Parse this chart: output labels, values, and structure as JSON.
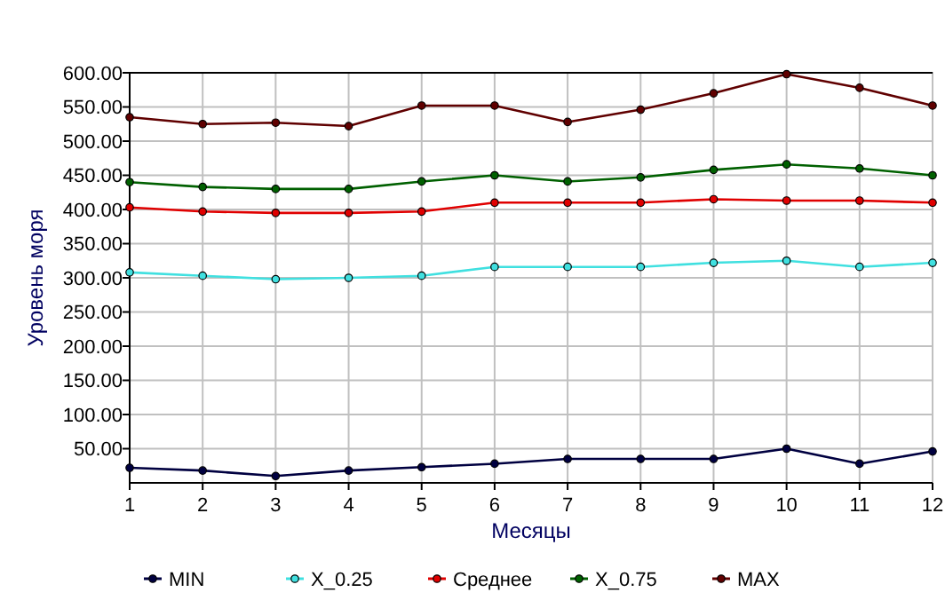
{
  "chart_data": {
    "type": "line",
    "xlabel": "Месяцы",
    "ylabel": "Уровень моря",
    "x": [
      1,
      2,
      3,
      4,
      5,
      6,
      7,
      8,
      9,
      10,
      11,
      12
    ],
    "xlim": [
      1,
      12
    ],
    "xticks": [
      1,
      2,
      3,
      4,
      5,
      6,
      7,
      8,
      9,
      10,
      11,
      12
    ],
    "ylim": [
      0,
      600
    ],
    "yticks": [
      {
        "value": 50,
        "label": "50.00"
      },
      {
        "value": 100,
        "label": "100.00"
      },
      {
        "value": 150,
        "label": "150.00"
      },
      {
        "value": 200,
        "label": "200.00"
      },
      {
        "value": 250,
        "label": "250.00"
      },
      {
        "value": 300,
        "label": "300.00"
      },
      {
        "value": 350,
        "label": "350.00"
      },
      {
        "value": 400,
        "label": "400.00"
      },
      {
        "value": 450,
        "label": "450.00"
      },
      {
        "value": 500,
        "label": "500.00"
      },
      {
        "value": 550,
        "label": "550.00"
      },
      {
        "value": 600,
        "label": "600.00"
      }
    ],
    "grid": true,
    "legend": "bottom",
    "marker": "circle",
    "series": [
      {
        "name": "MIN",
        "color": "#000040",
        "values": [
          22,
          18,
          10,
          18,
          23,
          28,
          35,
          35,
          35,
          50,
          28,
          46
        ]
      },
      {
        "name": "X_0.25",
        "color": "#40e0e0",
        "values": [
          308,
          303,
          298,
          300,
          303,
          316,
          316,
          316,
          322,
          325,
          316,
          322
        ]
      },
      {
        "name": "Среднее",
        "color": "#e00000",
        "values": [
          403,
          397,
          395,
          395,
          397,
          410,
          410,
          410,
          415,
          413,
          413,
          410
        ]
      },
      {
        "name": "X_0.75",
        "color": "#006000",
        "values": [
          440,
          433,
          430,
          430,
          441,
          450,
          441,
          447,
          458,
          466,
          460,
          450
        ]
      },
      {
        "name": "MAX",
        "color": "#600000",
        "values": [
          535,
          525,
          527,
          522,
          552,
          552,
          528,
          546,
          570,
          598,
          578,
          552
        ]
      }
    ]
  }
}
